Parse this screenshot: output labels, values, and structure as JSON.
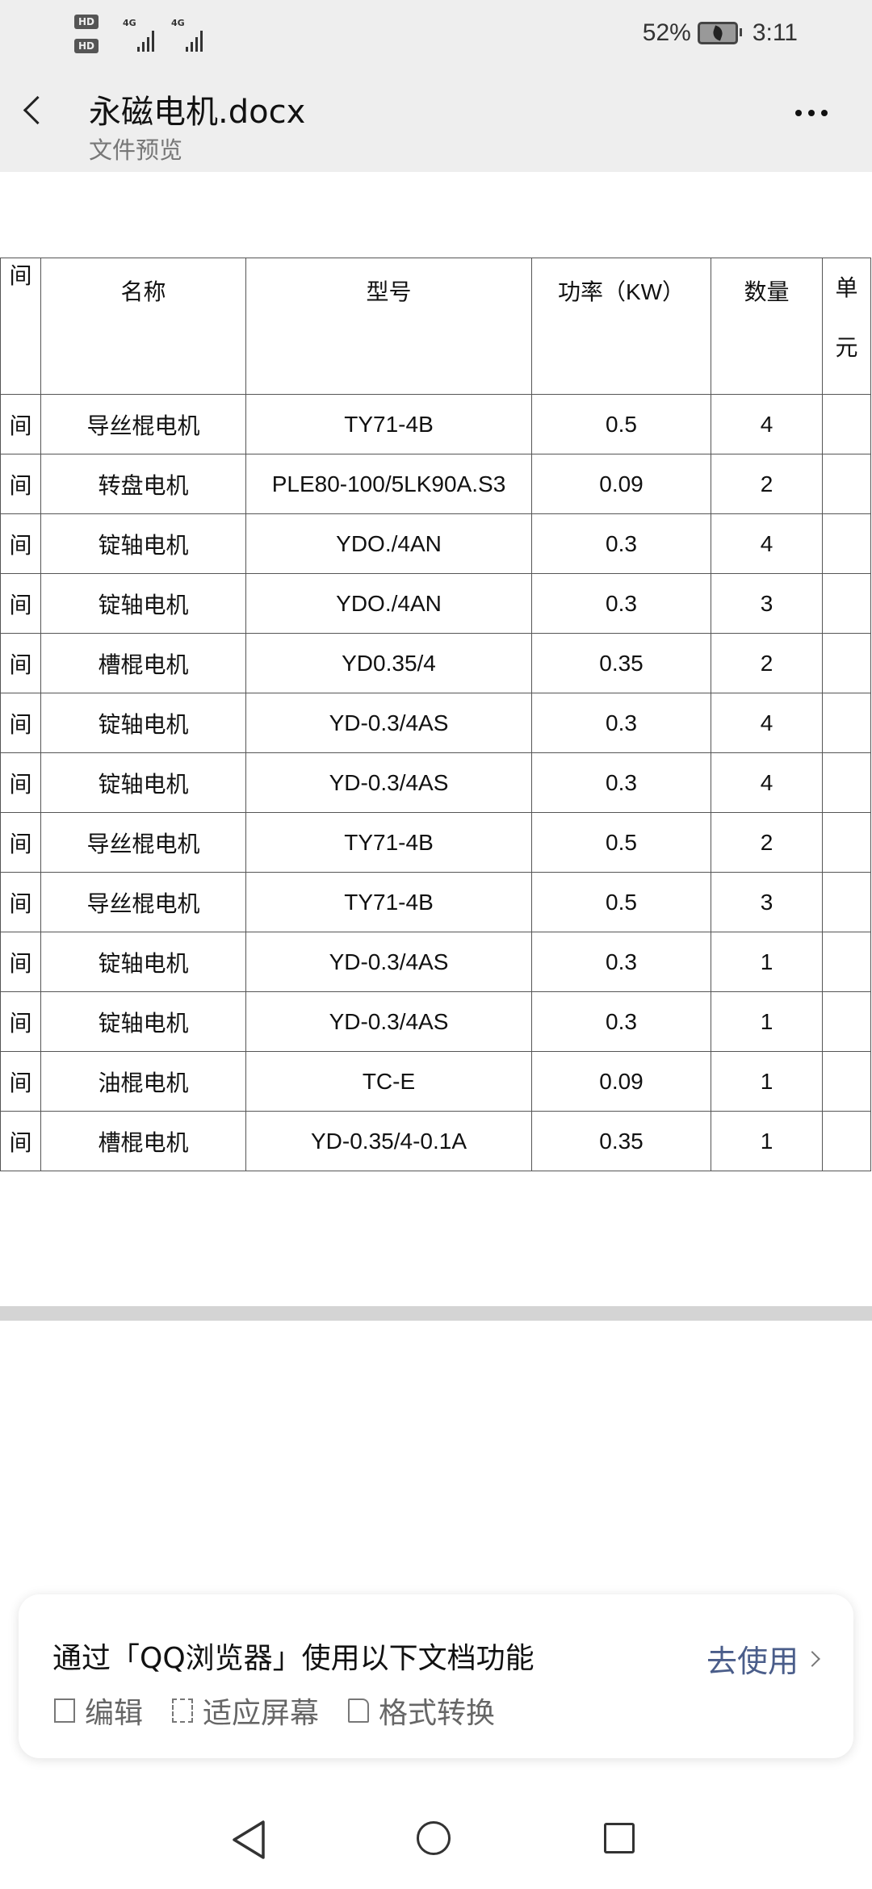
{
  "status_bar": {
    "sim1": "HD 1",
    "sim2": "HD 2",
    "network1": "4G",
    "network2": "4G",
    "battery": "52%",
    "time": "3:11"
  },
  "header": {
    "title": "永磁电机.docx",
    "subtitle": "文件预览"
  },
  "table": {
    "headers": [
      "间",
      "名称",
      "型号",
      "功率（KW）",
      "数量",
      "单元"
    ],
    "rows": [
      [
        "间",
        "导丝棍电机",
        "TY71-4B",
        "0.5",
        "4",
        ""
      ],
      [
        "间",
        "转盘电机",
        "PLE80-100/5LK90A.S3",
        "0.09",
        "2",
        ""
      ],
      [
        "间",
        "锭轴电机",
        "YDO./4AN",
        "0.3",
        "4",
        ""
      ],
      [
        "间",
        "锭轴电机",
        "YDO./4AN",
        "0.3",
        "3",
        ""
      ],
      [
        "间",
        "槽棍电机",
        "YD0.35/4",
        "0.35",
        "2",
        ""
      ],
      [
        "间",
        "锭轴电机",
        "YD-0.3/4AS",
        "0.3",
        "4",
        ""
      ],
      [
        "间",
        "锭轴电机",
        "YD-0.3/4AS",
        "0.3",
        "4",
        ""
      ],
      [
        "间",
        "导丝棍电机",
        "TY71-4B",
        "0.5",
        "2",
        ""
      ],
      [
        "间",
        "导丝棍电机",
        "TY71-4B",
        "0.5",
        "3",
        ""
      ],
      [
        "间",
        "锭轴电机",
        "YD-0.3/4AS",
        "0.3",
        "1",
        ""
      ],
      [
        "间",
        "锭轴电机",
        "YD-0.3/4AS",
        "0.3",
        "1",
        ""
      ],
      [
        "间",
        "油棍电机",
        "TC-E",
        "0.09",
        "1",
        ""
      ],
      [
        "间",
        "槽棍电机",
        "YD-0.35/4-0.1A",
        "0.35",
        "1",
        ""
      ]
    ]
  },
  "banner": {
    "title": "通过「QQ浏览器」使用以下文档功能",
    "features": [
      {
        "icon": "edit-icon",
        "label": "编辑"
      },
      {
        "icon": "fit-screen-icon",
        "label": "适应屏幕"
      },
      {
        "icon": "file-icon",
        "label": "格式转换"
      }
    ],
    "action": "去使用",
    "action_color": "#4a5d8a"
  }
}
